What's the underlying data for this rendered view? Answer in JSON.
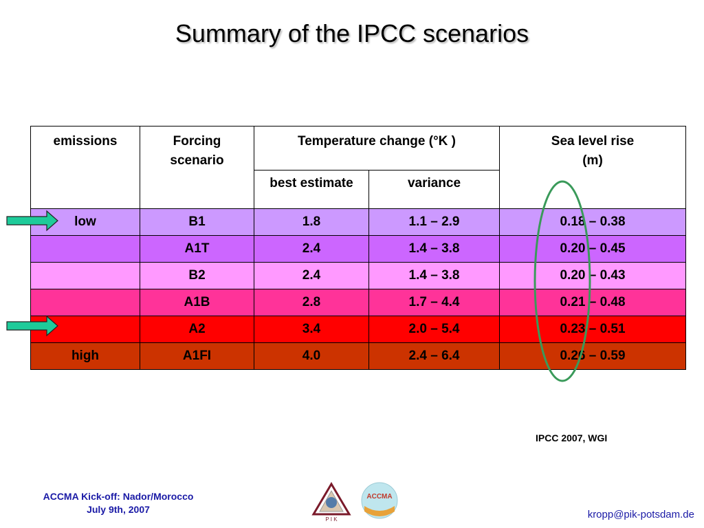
{
  "title": "Summary of the IPCC scenarios",
  "table": {
    "headers": {
      "emissions": "emissions",
      "forcing_line1": "Forcing",
      "forcing_line2": "scenario",
      "temperature": "Temperature change (°K )",
      "sea_line1": "Sea level rise",
      "sea_line2": "(m)",
      "best_estimate": "best estimate",
      "variance": "variance"
    },
    "rows": [
      {
        "emissions": "low",
        "scenario": "B1",
        "best": "1.8",
        "variance": "1.1 – 2.9",
        "sea": "0.18 – 0.38",
        "color": "#cc99ff"
      },
      {
        "emissions": "",
        "scenario": "A1T",
        "best": "2.4",
        "variance": "1.4 – 3.8",
        "sea": "0.20 – 0.45",
        "color": "#cc66ff"
      },
      {
        "emissions": "",
        "scenario": "B2",
        "best": "2.4",
        "variance": "1.4 – 3.8",
        "sea": "0.20 – 0.43",
        "color": "#ff99ff"
      },
      {
        "emissions": "",
        "scenario": "A1B",
        "best": "2.8",
        "variance": "1.7 – 4.4",
        "sea": "0.21 – 0.48",
        "color": "#ff3399"
      },
      {
        "emissions": "",
        "scenario": "A2",
        "best": "3.4",
        "variance": "2.0 – 5.4",
        "sea": "0.23 – 0.51",
        "color": "#ff0000"
      },
      {
        "emissions": "high",
        "scenario": "A1FI",
        "best": "4.0",
        "variance": "2.4 – 6.4",
        "sea": "0.26 – 0.59",
        "color": "#cc3300"
      }
    ]
  },
  "source": "IPCC 2007, WGI",
  "footer": {
    "line1": "ACCMA Kick-off: Nador/Morocco",
    "line2": "July 9th, 2007",
    "email": "kropp@pik-potsdam.de"
  },
  "logos": {
    "pik_text": "P I K",
    "accma_text": "ACCMA"
  },
  "colors": {
    "arrow": "#1ecb9a",
    "ellipse": "#3a9a5a",
    "footer_text": "#1a1aa6"
  }
}
